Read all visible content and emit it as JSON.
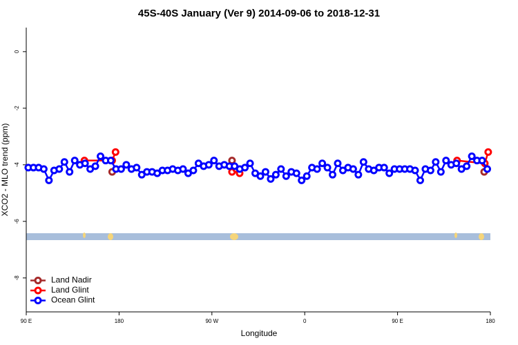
{
  "chart_data": {
    "type": "line",
    "title": "45S-40S January (Ver 9)   2014-09-06 to 2018-12-31",
    "xlabel": "Longitude",
    "ylabel": "XCO2 - MLO trend (ppm)",
    "xlim": [
      90,
      540
    ],
    "ylim": [
      -9.2,
      0.85
    ],
    "xticks": [
      {
        "value": 90,
        "label": "90 E"
      },
      180,
      {
        "value": 270,
        "label": "90 W"
      },
      {
        "value": 360,
        "label": "0"
      },
      {
        "value": 450,
        "label": "90 E"
      },
      {
        "value": 540,
        "label": "180"
      }
    ],
    "yticks": [
      0,
      -2,
      -4,
      -6,
      -8
    ],
    "legend": "bottom-left",
    "series": [
      {
        "name": "Land Nadir",
        "color": "#a52a2a",
        "x": [
          173.3,
          230,
          289.5,
          420,
          534
        ],
        "values": [
          -4.25,
          null,
          -3.85,
          null,
          -4.25
        ]
      },
      {
        "name": "Land Glint",
        "color": "#ff0000",
        "x": [
          146.4,
          173.3,
          176.6,
          230,
          289.5,
          293.5,
          296.9,
          420,
          507.7,
          534.6,
          537.9
        ],
        "values": [
          -3.85,
          -3.85,
          -3.55,
          null,
          -4.25,
          -4.15,
          -4.3,
          null,
          -3.85,
          -3.95,
          -3.55
        ]
      },
      {
        "name": "Ocean Glint",
        "color": "#0000ff",
        "x": [
          92,
          97,
          102,
          107,
          112,
          117,
          122,
          127,
          132,
          137,
          142,
          147,
          152,
          157,
          162,
          167,
          172,
          177,
          182,
          187,
          192,
          197,
          202,
          207,
          212,
          217,
          222,
          227,
          232,
          237,
          242,
          247,
          252,
          257,
          262,
          267,
          272,
          277,
          282,
          287,
          292,
          297,
          302,
          307,
          312,
          317,
          322,
          327,
          332,
          337,
          342,
          347,
          352,
          357,
          362,
          367,
          372,
          377,
          382,
          387,
          392,
          397,
          402,
          407,
          412,
          417,
          422,
          427,
          432,
          437,
          442,
          447,
          452,
          457,
          462,
          467,
          472,
          477,
          482,
          487,
          492,
          497,
          502,
          507,
          512,
          517,
          522,
          527,
          532,
          537
        ],
        "values": [
          -4.1,
          -4.1,
          -4.1,
          -4.15,
          -4.55,
          -4.2,
          -4.15,
          -3.9,
          -4.25,
          -3.85,
          -4.0,
          -3.95,
          -4.15,
          -4.05,
          -3.7,
          -3.85,
          -3.85,
          -4.15,
          -4.15,
          -4.0,
          -4.15,
          -4.1,
          -4.35,
          -4.25,
          -4.25,
          -4.3,
          -4.2,
          -4.2,
          -4.15,
          -4.2,
          -4.15,
          -4.3,
          -4.2,
          -3.95,
          -4.05,
          -4.0,
          -3.85,
          -4.05,
          -4.0,
          -4.05,
          -4.05,
          -4.15,
          -4.1,
          -3.95,
          -4.3,
          -4.4,
          -4.25,
          -4.5,
          -4.35,
          -4.15,
          -4.4,
          -4.25,
          -4.3,
          -4.55,
          -4.4,
          -4.1,
          -4.15,
          -3.95,
          -4.1,
          -4.35,
          -3.95,
          -4.2,
          -4.1,
          -4.15,
          -4.35,
          -3.9,
          -4.15,
          -4.2,
          -4.1,
          -4.1,
          -4.3,
          -4.15,
          -4.15,
          -4.15,
          -4.15,
          -4.2,
          -4.55,
          -4.15,
          -4.2,
          -3.9,
          -4.25,
          -3.85,
          -4.0,
          -3.95,
          -4.15,
          -4.05,
          -3.7,
          -3.85,
          -3.85,
          -4.15
        ]
      }
    ]
  }
}
